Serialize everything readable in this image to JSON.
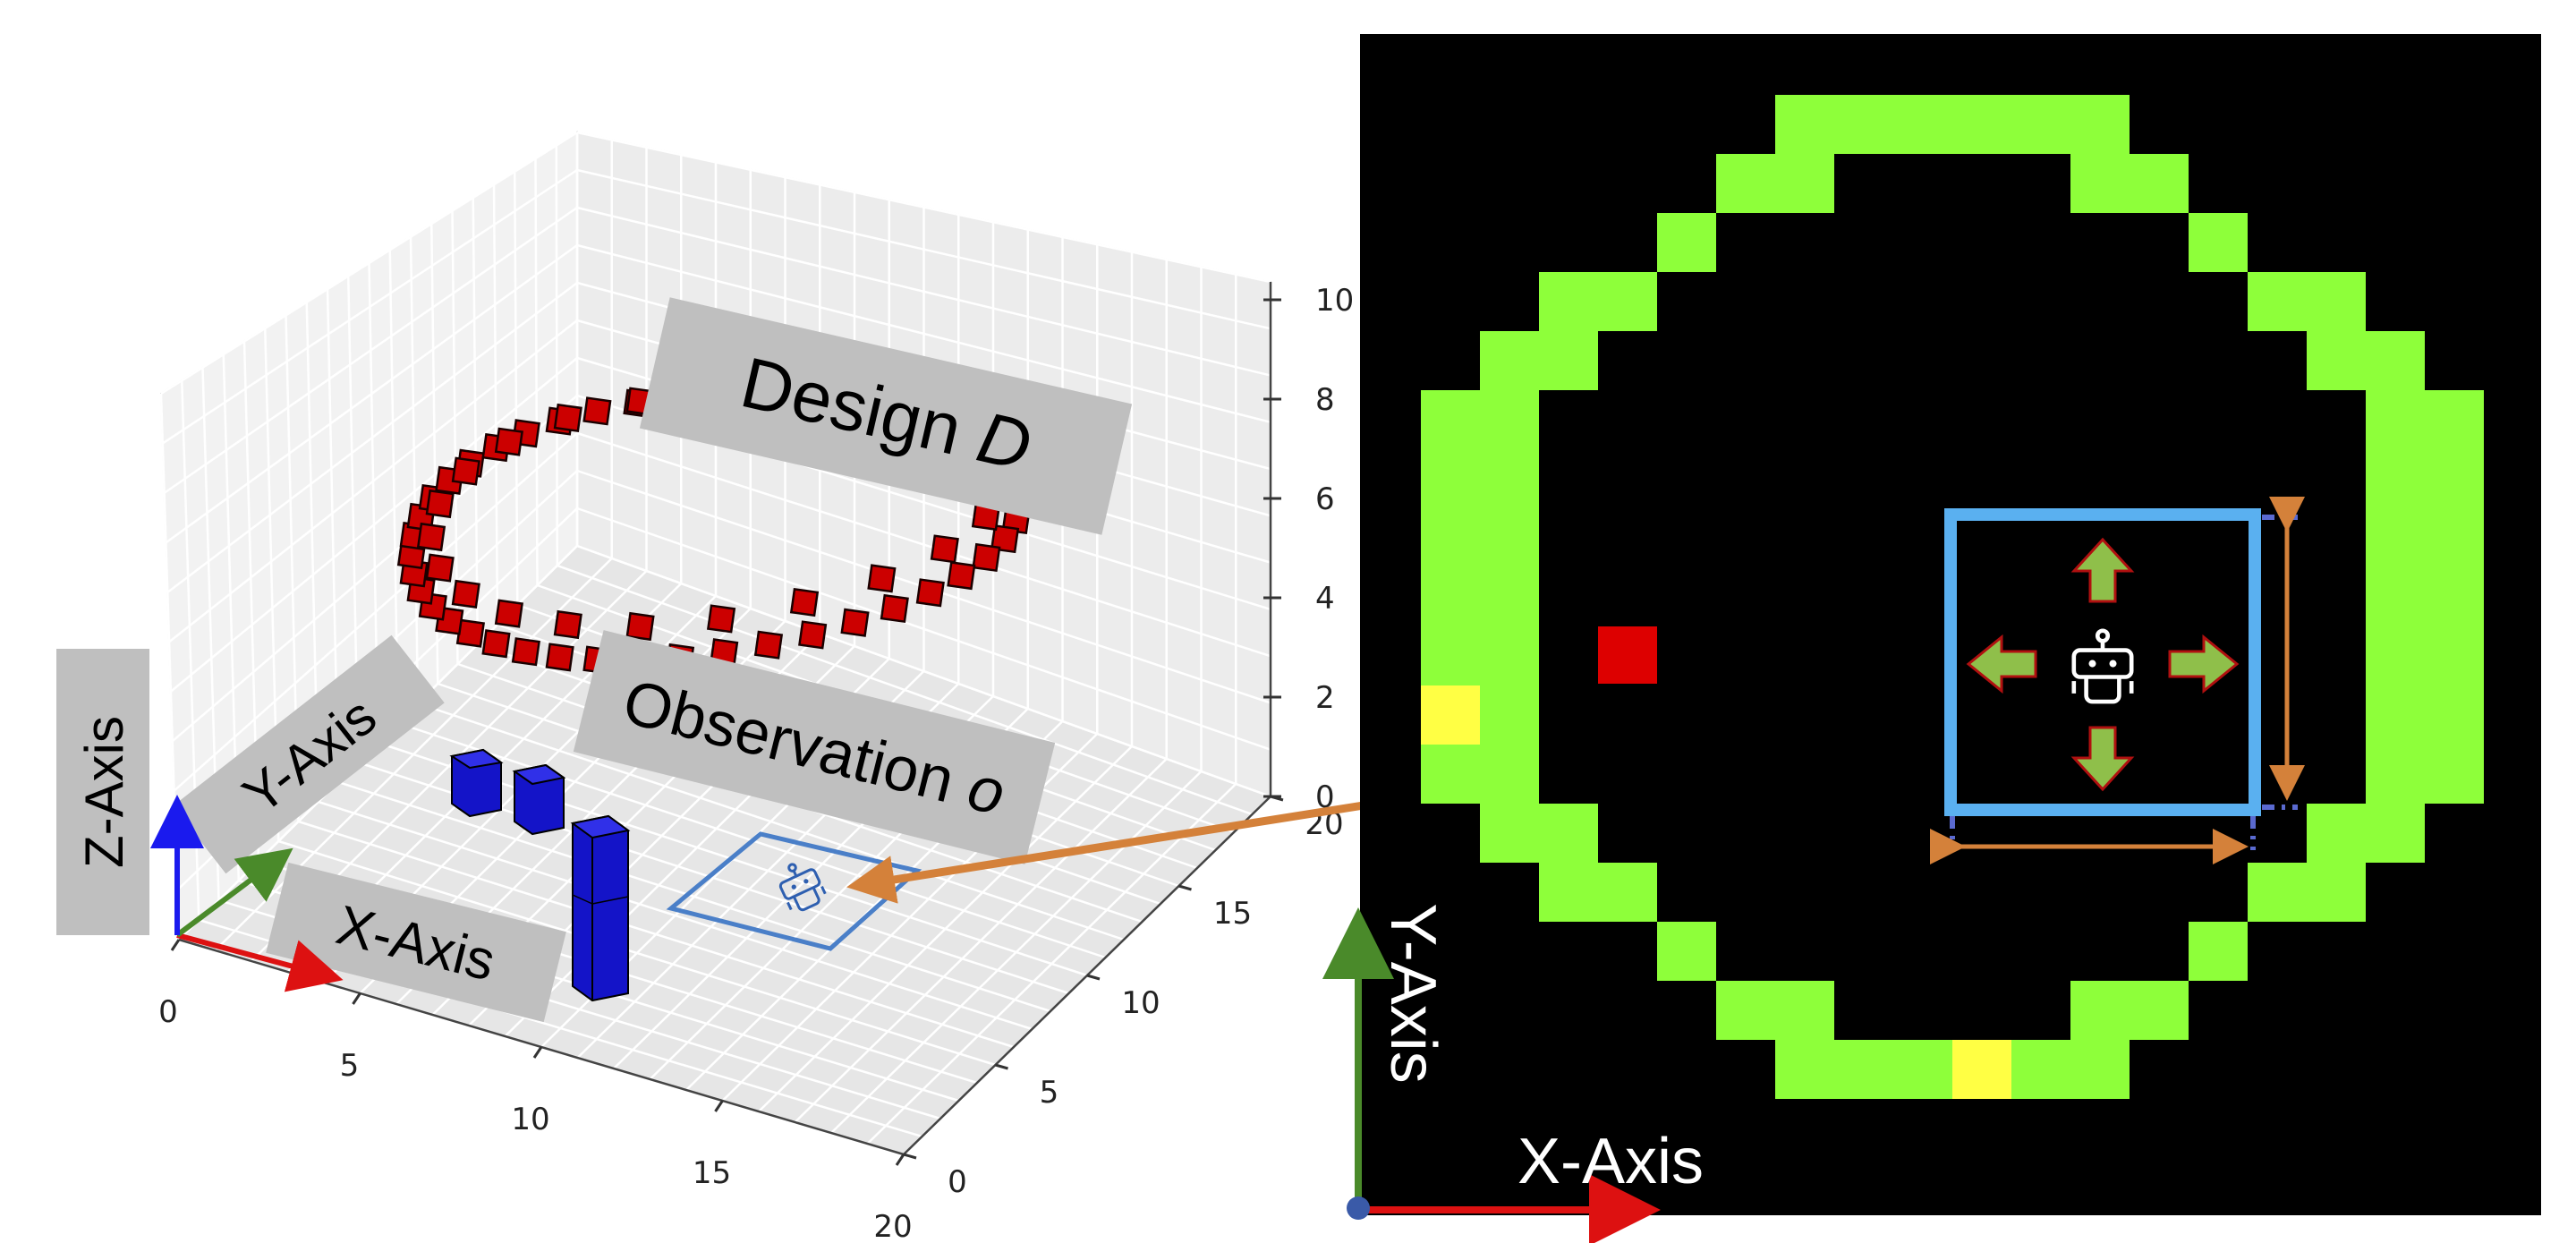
{
  "left_panel": {
    "labels": {
      "design": "Design D",
      "observation": "Observation o",
      "x_axis": "X-Axis",
      "y_axis": "Y-Axis",
      "z_axis": "Z-Axis"
    },
    "z_ticks": [
      "0",
      "2",
      "4",
      "6",
      "8",
      "10"
    ],
    "x_ticks": [
      "0",
      "5",
      "10",
      "15",
      "20"
    ],
    "y_ticks": [
      "0",
      "5",
      "10",
      "15",
      "20"
    ],
    "colors": {
      "design_voxels": "#cc0000",
      "structure_voxels": "#1414c8",
      "observation_window": "#4a7fc8",
      "label_box": "#bfbfbf"
    }
  },
  "right_panel": {
    "labels": {
      "x_axis": "X-Axis",
      "y_axis": "Y-Axis"
    },
    "colors": {
      "background": "#000000",
      "ring": "#8eff3a",
      "opening": "#ffff44",
      "target_block": "#dd0000",
      "observation_window": "#5ab0f0",
      "move_arrows": "#8fbf4a",
      "dimension_arrows": "#d4813a"
    },
    "agent_icon": "robot-icon",
    "move_arrows": [
      "up",
      "down",
      "left",
      "right"
    ]
  }
}
